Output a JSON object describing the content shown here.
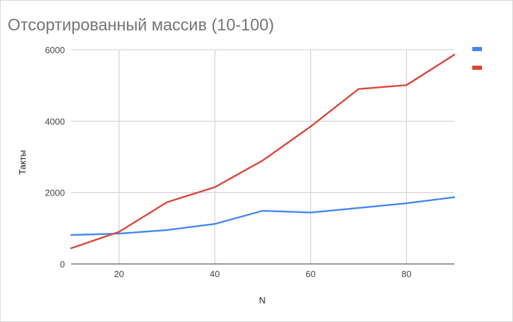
{
  "chart_data": {
    "type": "line",
    "title": "Отсортированный массив (10-100)",
    "xlabel": "N",
    "ylabel": "Такты",
    "xlim": [
      10,
      90
    ],
    "ylim": [
      0,
      6000
    ],
    "x_ticks": [
      20,
      40,
      60,
      80
    ],
    "y_ticks": [
      0,
      2000,
      4000,
      6000
    ],
    "x_tick_labels": [
      "20",
      "40",
      "60",
      "80"
    ],
    "y_tick_labels": [
      "0",
      "2000",
      "4000",
      "6000"
    ],
    "grid": true,
    "legend_position": "right",
    "x": [
      10,
      20,
      30,
      40,
      50,
      60,
      70,
      80,
      90
    ],
    "series": [
      {
        "color": "#4285f4",
        "values": [
          810,
          850,
          950,
          1120,
          1490,
          1440,
          1570,
          1700,
          1870
        ]
      },
      {
        "color": "#db4437",
        "values": [
          440,
          900,
          1730,
          2150,
          2900,
          3850,
          4900,
          5010,
          5860
        ]
      }
    ]
  }
}
